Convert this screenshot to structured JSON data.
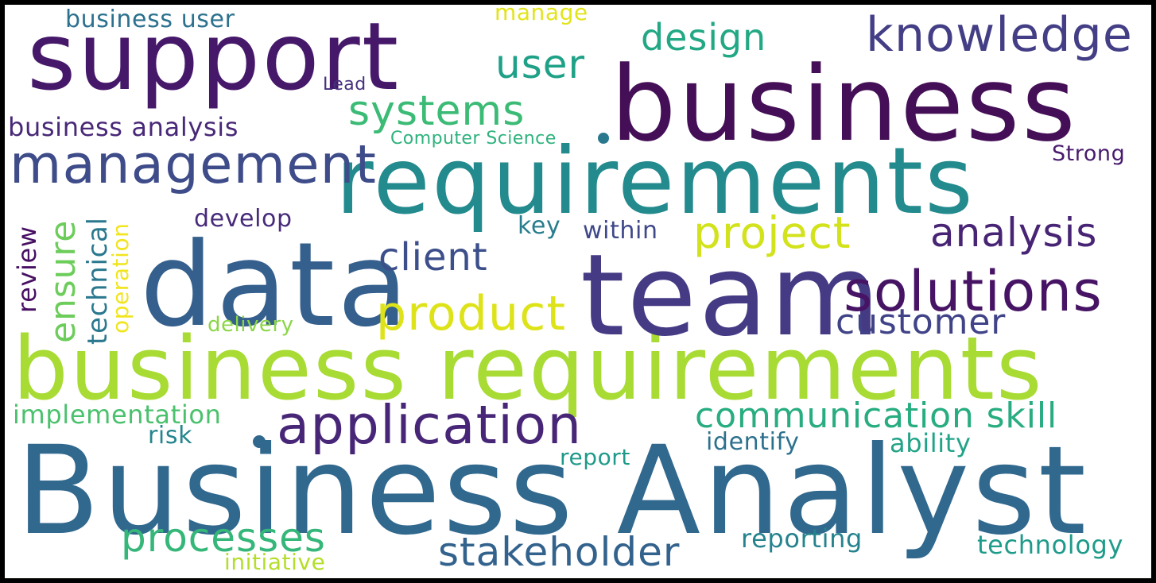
{
  "words": [
    {
      "text": "Business Analyst",
      "color": "#31688e"
    },
    {
      "text": "business requirements",
      "color": "#a8db34"
    },
    {
      "text": "business",
      "color": "#440f56"
    },
    {
      "text": "requirements",
      "color": "#238a8d"
    },
    {
      "text": "team",
      "color": "#453a84"
    },
    {
      "text": "data",
      "color": "#35608d"
    },
    {
      "text": "support",
      "color": "#46186a"
    },
    {
      "text": "management",
      "color": "#3e4c8a"
    },
    {
      "text": "knowledge",
      "color": "#433e85"
    },
    {
      "text": "solutions",
      "color": "#471465"
    },
    {
      "text": "application",
      "color": "#482677"
    },
    {
      "text": "product",
      "color": "#dde318"
    },
    {
      "text": "project",
      "color": "#d2e21b"
    },
    {
      "text": "analysis",
      "color": "#482475"
    },
    {
      "text": "stakeholder",
      "color": "#33638d"
    },
    {
      "text": "communication skill",
      "color": "#27ad81"
    },
    {
      "text": "client",
      "color": "#3c4f8a"
    },
    {
      "text": "customer",
      "color": "#404387"
    },
    {
      "text": "processes",
      "color": "#35b779"
    },
    {
      "text": "systems",
      "color": "#3bbb75"
    },
    {
      "text": "user",
      "color": "#1fa187"
    },
    {
      "text": "design",
      "color": "#22a884"
    },
    {
      "text": "ensure",
      "color": "#6ccd5a"
    },
    {
      "text": "business analysis",
      "color": "#482878"
    },
    {
      "text": "implementation",
      "color": "#4ac16d"
    },
    {
      "text": "technical",
      "color": "#2a788e"
    },
    {
      "text": "operation",
      "color": "#f1e51d"
    },
    {
      "text": "review",
      "color": "#471063"
    },
    {
      "text": "develop",
      "color": "#472a7a"
    },
    {
      "text": "delivery",
      "color": "#8bd646"
    },
    {
      "text": "within",
      "color": "#3f4889"
    },
    {
      "text": "key",
      "color": "#287d8e"
    },
    {
      "text": "Strong",
      "color": "#481b6d"
    },
    {
      "text": "Computer Science",
      "color": "#2db27d"
    },
    {
      "text": "Lead",
      "color": "#46307e"
    },
    {
      "text": "business user",
      "color": "#2c718e"
    },
    {
      "text": "manage",
      "color": "#e2e418"
    },
    {
      "text": "risk",
      "color": "#25858e"
    },
    {
      "text": "identify",
      "color": "#2d718e"
    },
    {
      "text": "ability",
      "color": "#20a386"
    },
    {
      "text": "report",
      "color": "#1f9a8a"
    },
    {
      "text": "reporting",
      "color": "#25838e"
    },
    {
      "text": "technology",
      "color": "#1e9b8a"
    },
    {
      "text": "initiative",
      "color": "#b5de2b"
    }
  ],
  "dots": [
    {
      "color": "#2a788e"
    },
    {
      "color": "#31688e"
    }
  ]
}
